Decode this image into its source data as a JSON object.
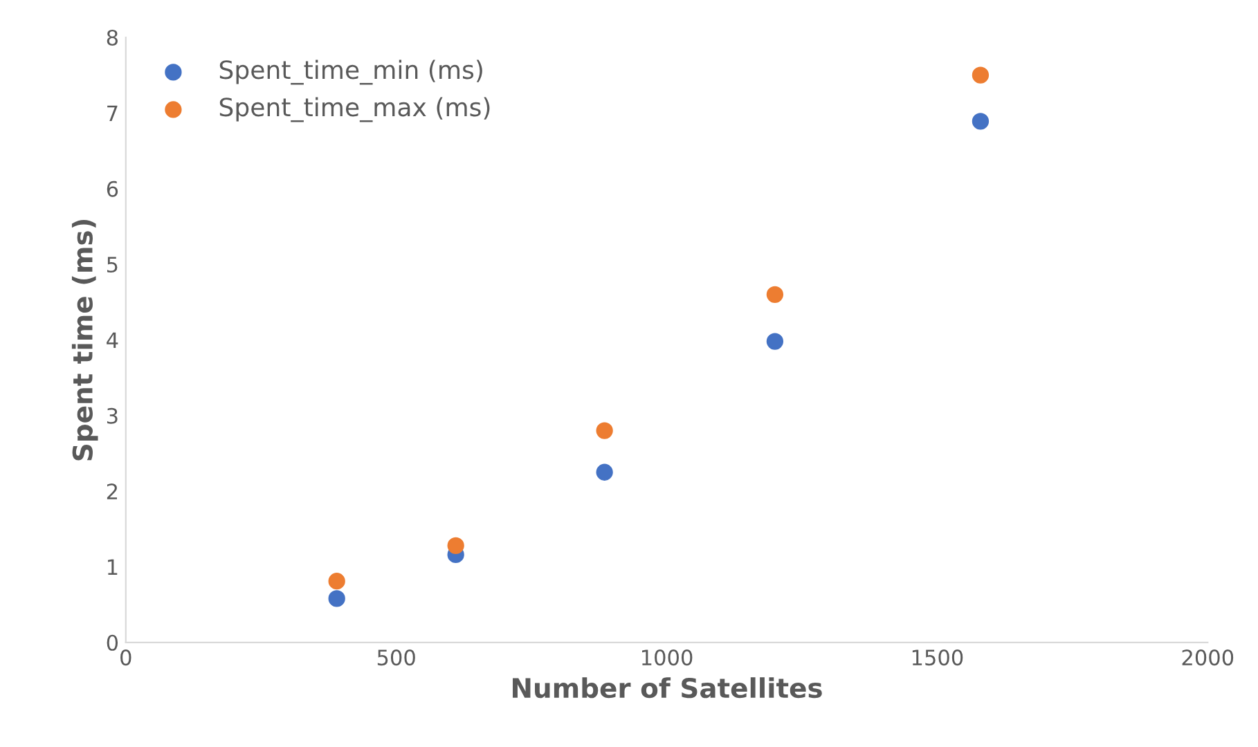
{
  "chart_data": {
    "type": "scatter",
    "xlabel": "Number of Satellites",
    "ylabel": "Spent time (ms)",
    "x": [
      390,
      610,
      885,
      1200,
      1580
    ],
    "series": [
      {
        "name": "Spent_time_min (ms)",
        "color": "#4472c4",
        "values": [
          0.58,
          1.16,
          2.25,
          3.98,
          6.89
        ]
      },
      {
        "name": "Spent_time_max (ms)",
        "color": "#ed7d31",
        "values": [
          0.81,
          1.28,
          2.8,
          4.6,
          7.5
        ]
      }
    ],
    "xlim": [
      0,
      2000
    ],
    "xticks": [
      0,
      500,
      1000,
      1500,
      2000
    ],
    "ylim": [
      0,
      8
    ],
    "yticks": [
      0,
      1,
      2,
      3,
      4,
      5,
      6,
      7,
      8
    ],
    "legend": "top left",
    "marker": "circle",
    "grid": false
  }
}
